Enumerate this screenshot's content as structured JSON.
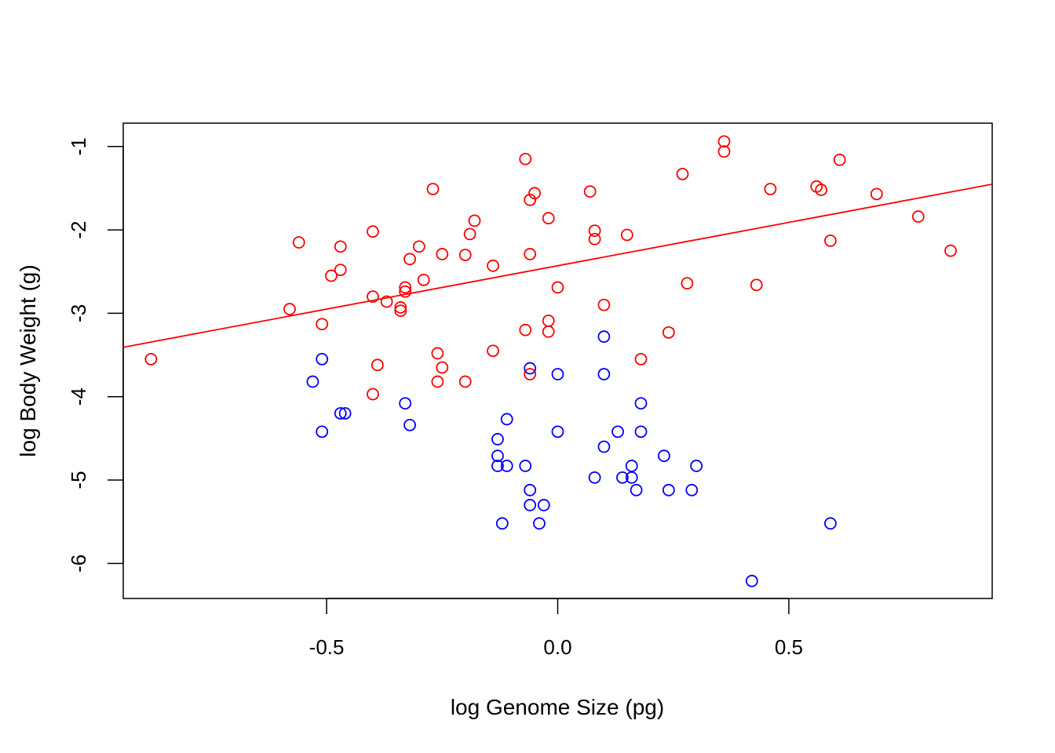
{
  "chart_data": {
    "type": "scatter",
    "xlabel": "log Genome Size (pg)",
    "ylabel": "log Body Weight (g)",
    "xlim": [
      -0.94,
      0.94
    ],
    "ylim": [
      -6.42,
      -0.72
    ],
    "x_ticks": [
      -0.5,
      0.0,
      0.5
    ],
    "x_tick_labels": [
      "-0.5",
      "0.0",
      "0.5"
    ],
    "y_ticks": [
      -6,
      -5,
      -4,
      -3,
      -2,
      -1
    ],
    "y_tick_labels": [
      "-6",
      "-5",
      "-4",
      "-3",
      "-2",
      "-1"
    ],
    "grid": false,
    "legend": "none",
    "series": [
      {
        "color": "#ff0000",
        "marker": "open-circle",
        "points": [
          [
            -0.88,
            -3.55
          ],
          [
            -0.58,
            -2.95
          ],
          [
            -0.56,
            -2.15
          ],
          [
            -0.51,
            -3.13
          ],
          [
            -0.49,
            -2.55
          ],
          [
            -0.47,
            -2.48
          ],
          [
            -0.47,
            -2.2
          ],
          [
            -0.4,
            -2.02
          ],
          [
            -0.4,
            -2.8
          ],
          [
            -0.4,
            -3.97
          ],
          [
            -0.39,
            -3.62
          ],
          [
            -0.37,
            -2.86
          ],
          [
            -0.34,
            -2.93
          ],
          [
            -0.34,
            -2.97
          ],
          [
            -0.33,
            -2.69
          ],
          [
            -0.33,
            -2.74
          ],
          [
            -0.32,
            -2.35
          ],
          [
            -0.3,
            -2.2
          ],
          [
            -0.29,
            -2.6
          ],
          [
            -0.27,
            -1.51
          ],
          [
            -0.26,
            -3.48
          ],
          [
            -0.26,
            -3.82
          ],
          [
            -0.25,
            -3.65
          ],
          [
            -0.25,
            -2.29
          ],
          [
            -0.2,
            -2.3
          ],
          [
            -0.2,
            -3.82
          ],
          [
            -0.19,
            -2.05
          ],
          [
            -0.18,
            -1.89
          ],
          [
            -0.14,
            -2.43
          ],
          [
            -0.14,
            -3.45
          ],
          [
            -0.07,
            -1.15
          ],
          [
            -0.07,
            -3.2
          ],
          [
            -0.06,
            -2.29
          ],
          [
            -0.06,
            -1.64
          ],
          [
            -0.06,
            -3.73
          ],
          [
            -0.05,
            -1.56
          ],
          [
            -0.02,
            -1.86
          ],
          [
            -0.02,
            -3.09
          ],
          [
            -0.02,
            -3.22
          ],
          [
            0.0,
            -2.69
          ],
          [
            0.07,
            -1.54
          ],
          [
            0.08,
            -2.01
          ],
          [
            0.08,
            -2.11
          ],
          [
            0.1,
            -2.9
          ],
          [
            0.15,
            -2.06
          ],
          [
            0.18,
            -3.55
          ],
          [
            0.24,
            -3.23
          ],
          [
            0.27,
            -1.33
          ],
          [
            0.28,
            -2.64
          ],
          [
            0.36,
            -0.94
          ],
          [
            0.36,
            -1.06
          ],
          [
            0.43,
            -2.66
          ],
          [
            0.46,
            -1.51
          ],
          [
            0.56,
            -1.48
          ],
          [
            0.57,
            -1.52
          ],
          [
            0.59,
            -2.13
          ],
          [
            0.61,
            -1.16
          ],
          [
            0.69,
            -1.57
          ],
          [
            0.78,
            -1.84
          ],
          [
            0.85,
            -2.25
          ]
        ]
      },
      {
        "color": "#0000ff",
        "marker": "open-circle",
        "points": [
          [
            -0.53,
            -3.82
          ],
          [
            -0.51,
            -3.55
          ],
          [
            -0.51,
            -4.42
          ],
          [
            -0.47,
            -4.2
          ],
          [
            -0.46,
            -4.2
          ],
          [
            -0.33,
            -4.08
          ],
          [
            -0.32,
            -4.34
          ],
          [
            -0.13,
            -4.51
          ],
          [
            -0.13,
            -4.71
          ],
          [
            -0.13,
            -4.83
          ],
          [
            -0.12,
            -5.52
          ],
          [
            -0.11,
            -4.83
          ],
          [
            -0.11,
            -4.27
          ],
          [
            -0.07,
            -4.83
          ],
          [
            -0.06,
            -5.12
          ],
          [
            -0.06,
            -5.3
          ],
          [
            -0.06,
            -3.66
          ],
          [
            -0.04,
            -5.52
          ],
          [
            -0.03,
            -5.3
          ],
          [
            0.0,
            -3.73
          ],
          [
            0.0,
            -4.42
          ],
          [
            0.08,
            -4.97
          ],
          [
            0.1,
            -4.6
          ],
          [
            0.1,
            -3.28
          ],
          [
            0.1,
            -3.73
          ],
          [
            0.13,
            -4.42
          ],
          [
            0.14,
            -4.97
          ],
          [
            0.16,
            -4.83
          ],
          [
            0.16,
            -4.97
          ],
          [
            0.17,
            -5.12
          ],
          [
            0.18,
            -4.08
          ],
          [
            0.18,
            -4.42
          ],
          [
            0.23,
            -4.71
          ],
          [
            0.24,
            -5.12
          ],
          [
            0.29,
            -5.12
          ],
          [
            0.3,
            -4.83
          ],
          [
            0.42,
            -6.21
          ],
          [
            0.59,
            -5.52
          ]
        ]
      }
    ],
    "fit_line": {
      "color": "#ff0000",
      "intercept": -2.43,
      "slope": 1.04
    }
  }
}
